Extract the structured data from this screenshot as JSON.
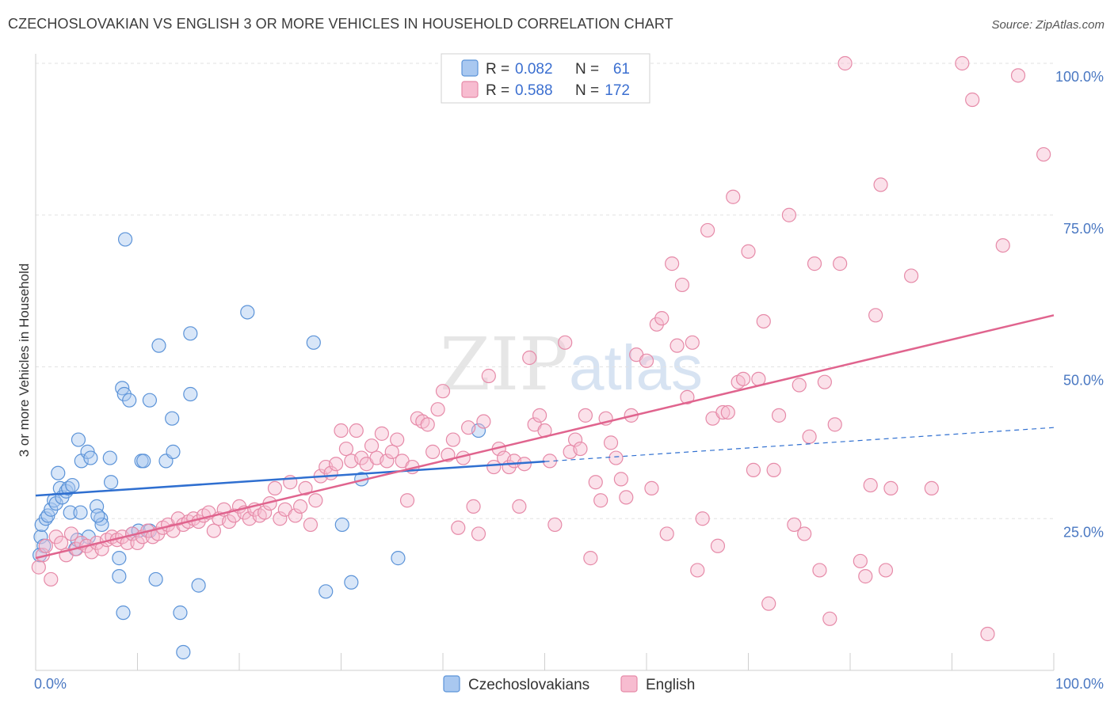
{
  "header": {
    "title": "CZECHOSLOVAKIAN VS ENGLISH 3 OR MORE VEHICLES IN HOUSEHOLD CORRELATION CHART",
    "source": "Source: ZipAtlas.com"
  },
  "watermark": {
    "zip": "ZIP",
    "atlas": "atlas"
  },
  "colors": {
    "blue_fill": "#a9c8f0",
    "blue_stroke": "#5b93d8",
    "blue_line": "#2f6fd0",
    "pink_fill": "#f7bcd0",
    "pink_stroke": "#e68aa8",
    "pink_line": "#e0648e",
    "grid": "#e2e2e2",
    "axis_label": "#4a78c2"
  },
  "legend": {
    "r_label": "R =",
    "n_label": "N =",
    "rows": [
      {
        "r": "0.082",
        "n": "61"
      },
      {
        "r": "0.588",
        "n": "172"
      }
    ]
  },
  "chart_data": {
    "type": "scatter",
    "ylabel": "3 or more Vehicles in Household",
    "xlim": [
      0,
      100
    ],
    "ylim": [
      0,
      100
    ],
    "x_tick_labels": [
      "0.0%",
      "100.0%"
    ],
    "y_tick_labels": [
      "25.0%",
      "50.0%",
      "75.0%",
      "100.0%"
    ],
    "y_ticks": [
      25,
      50,
      75,
      100
    ],
    "grid": "dashed horizontal",
    "legend_position": "top-center",
    "series": [
      {
        "name": "Czechoslovakians",
        "r": 0.082,
        "n": 61,
        "trend": {
          "x": [
            0,
            50
          ],
          "y": [
            28.8,
            34.4
          ],
          "dashed_extension": {
            "x": [
              50,
              100
            ],
            "y": [
              34.4,
              40.0
            ]
          }
        },
        "points": [
          [
            0.5,
            22.0
          ],
          [
            0.6,
            24.0
          ],
          [
            0.8,
            20.5
          ],
          [
            1.0,
            25.0
          ],
          [
            0.4,
            19.0
          ],
          [
            1.2,
            25.5
          ],
          [
            1.5,
            26.5
          ],
          [
            1.8,
            28.0
          ],
          [
            2.0,
            27.5
          ],
          [
            2.2,
            32.5
          ],
          [
            2.4,
            30.0
          ],
          [
            2.6,
            28.5
          ],
          [
            3.0,
            29.5
          ],
          [
            3.2,
            30.0
          ],
          [
            3.6,
            30.5
          ],
          [
            3.4,
            26.0
          ],
          [
            4.2,
            38.0
          ],
          [
            4.5,
            34.5
          ],
          [
            4.4,
            26.0
          ],
          [
            5.1,
            36.0
          ],
          [
            5.4,
            35.0
          ],
          [
            3.9,
            20.0
          ],
          [
            4.1,
            21.5
          ],
          [
            5.2,
            22.0
          ],
          [
            6.0,
            27.0
          ],
          [
            6.4,
            25.0
          ],
          [
            6.5,
            24.0
          ],
          [
            6.1,
            25.5
          ],
          [
            7.3,
            35.0
          ],
          [
            7.4,
            31.0
          ],
          [
            8.2,
            18.5
          ],
          [
            8.2,
            15.5
          ],
          [
            8.5,
            46.5
          ],
          [
            8.7,
            45.5
          ],
          [
            8.8,
            71.0
          ],
          [
            9.2,
            44.5
          ],
          [
            9.5,
            22.5
          ],
          [
            10.1,
            23.0
          ],
          [
            10.4,
            34.5
          ],
          [
            10.6,
            34.5
          ],
          [
            11.2,
            23.0
          ],
          [
            11.2,
            44.5
          ],
          [
            11.8,
            15.0
          ],
          [
            12.1,
            53.5
          ],
          [
            12.8,
            34.5
          ],
          [
            13.4,
            41.5
          ],
          [
            13.5,
            36.0
          ],
          [
            14.2,
            9.5
          ],
          [
            14.5,
            3.0
          ],
          [
            15.2,
            55.5
          ],
          [
            15.2,
            45.5
          ],
          [
            16.0,
            14.0
          ],
          [
            8.6,
            9.5
          ],
          [
            20.8,
            59.0
          ],
          [
            27.3,
            54.0
          ],
          [
            28.5,
            13.0
          ],
          [
            30.1,
            24.0
          ],
          [
            31.0,
            14.5
          ],
          [
            32.0,
            31.5
          ],
          [
            35.6,
            18.5
          ],
          [
            43.5,
            39.5
          ]
        ]
      },
      {
        "name": "English",
        "r": 0.588,
        "n": 172,
        "trend": {
          "x": [
            0,
            100
          ],
          "y": [
            18.5,
            58.5
          ]
        },
        "points": [
          [
            0.3,
            17.0
          ],
          [
            0.7,
            19.0
          ],
          [
            1.0,
            20.5
          ],
          [
            1.5,
            15.0
          ],
          [
            2.0,
            22.0
          ],
          [
            2.5,
            21.0
          ],
          [
            3.0,
            19.0
          ],
          [
            3.5,
            22.5
          ],
          [
            4.0,
            20.0
          ],
          [
            4.5,
            21.0
          ],
          [
            5.0,
            20.5
          ],
          [
            5.5,
            19.5
          ],
          [
            6.0,
            21.0
          ],
          [
            6.5,
            20.0
          ],
          [
            7.0,
            21.5
          ],
          [
            7.5,
            22.0
          ],
          [
            8.0,
            21.5
          ],
          [
            8.5,
            22.0
          ],
          [
            9.0,
            21.0
          ],
          [
            9.5,
            22.5
          ],
          [
            10.0,
            21.0
          ],
          [
            10.5,
            22.0
          ],
          [
            11.0,
            23.0
          ],
          [
            11.5,
            22.0
          ],
          [
            12.0,
            22.5
          ],
          [
            12.5,
            23.5
          ],
          [
            13.0,
            24.0
          ],
          [
            13.5,
            23.0
          ],
          [
            14.0,
            25.0
          ],
          [
            14.5,
            24.0
          ],
          [
            15.0,
            24.5
          ],
          [
            15.5,
            25.0
          ],
          [
            16.0,
            24.5
          ],
          [
            16.5,
            25.5
          ],
          [
            17.0,
            26.0
          ],
          [
            17.5,
            23.0
          ],
          [
            18.0,
            25.0
          ],
          [
            18.5,
            26.5
          ],
          [
            19.0,
            24.5
          ],
          [
            19.5,
            25.5
          ],
          [
            20.0,
            27.0
          ],
          [
            20.5,
            26.0
          ],
          [
            21.0,
            25.0
          ],
          [
            21.5,
            26.5
          ],
          [
            22.0,
            25.5
          ],
          [
            22.5,
            26.0
          ],
          [
            23.0,
            27.5
          ],
          [
            23.5,
            30.0
          ],
          [
            24.0,
            25.0
          ],
          [
            24.5,
            26.5
          ],
          [
            25.0,
            31.0
          ],
          [
            25.5,
            25.5
          ],
          [
            26.0,
            27.0
          ],
          [
            26.5,
            30.0
          ],
          [
            27.0,
            24.0
          ],
          [
            27.5,
            28.0
          ],
          [
            28.0,
            32.0
          ],
          [
            28.5,
            33.5
          ],
          [
            29.0,
            32.5
          ],
          [
            29.5,
            34.0
          ],
          [
            30.0,
            39.5
          ],
          [
            30.5,
            36.5
          ],
          [
            31.0,
            34.5
          ],
          [
            31.5,
            39.5
          ],
          [
            32.0,
            35.0
          ],
          [
            32.5,
            34.0
          ],
          [
            33.0,
            37.0
          ],
          [
            33.5,
            35.0
          ],
          [
            34.0,
            39.0
          ],
          [
            34.5,
            34.5
          ],
          [
            35.0,
            36.0
          ],
          [
            35.5,
            38.0
          ],
          [
            36.0,
            34.5
          ],
          [
            36.5,
            28.0
          ],
          [
            37.0,
            33.5
          ],
          [
            37.5,
            41.5
          ],
          [
            38.0,
            41.0
          ],
          [
            38.5,
            40.5
          ],
          [
            39.0,
            36.0
          ],
          [
            39.5,
            43.0
          ],
          [
            40.0,
            46.0
          ],
          [
            40.5,
            35.5
          ],
          [
            41.0,
            38.0
          ],
          [
            41.5,
            23.5
          ],
          [
            42.0,
            35.0
          ],
          [
            42.5,
            40.0
          ],
          [
            43.0,
            27.0
          ],
          [
            43.5,
            22.5
          ],
          [
            44.0,
            41.0
          ],
          [
            44.5,
            48.5
          ],
          [
            45.0,
            33.5
          ],
          [
            45.5,
            36.5
          ],
          [
            46.0,
            35.0
          ],
          [
            46.5,
            33.5
          ],
          [
            47.0,
            34.5
          ],
          [
            47.5,
            27.0
          ],
          [
            48.0,
            34.0
          ],
          [
            48.5,
            51.5
          ],
          [
            49.0,
            40.5
          ],
          [
            49.5,
            42.0
          ],
          [
            50.0,
            39.5
          ],
          [
            50.5,
            34.5
          ],
          [
            51.0,
            24.0
          ],
          [
            52.0,
            54.0
          ],
          [
            52.5,
            36.0
          ],
          [
            53.0,
            38.0
          ],
          [
            53.5,
            36.5
          ],
          [
            54.0,
            42.0
          ],
          [
            54.5,
            18.5
          ],
          [
            55.0,
            31.0
          ],
          [
            55.5,
            28.0
          ],
          [
            56.0,
            41.5
          ],
          [
            56.5,
            37.5
          ],
          [
            57.0,
            35.0
          ],
          [
            57.5,
            31.5
          ],
          [
            58.0,
            28.5
          ],
          [
            58.5,
            42.0
          ],
          [
            59.0,
            52.0
          ],
          [
            60.0,
            51.0
          ],
          [
            60.5,
            30.0
          ],
          [
            61.0,
            57.0
          ],
          [
            61.5,
            58.0
          ],
          [
            62.0,
            22.5
          ],
          [
            62.5,
            67.0
          ],
          [
            63.0,
            53.5
          ],
          [
            63.5,
            63.5
          ],
          [
            64.0,
            45.0
          ],
          [
            64.5,
            54.0
          ],
          [
            65.0,
            16.5
          ],
          [
            65.5,
            25.0
          ],
          [
            66.0,
            72.5
          ],
          [
            66.5,
            41.5
          ],
          [
            67.0,
            20.5
          ],
          [
            67.5,
            42.5
          ],
          [
            68.0,
            42.5
          ],
          [
            68.5,
            78.0
          ],
          [
            69.0,
            47.5
          ],
          [
            69.5,
            48.0
          ],
          [
            70.0,
            69.0
          ],
          [
            70.5,
            33.0
          ],
          [
            71.0,
            48.0
          ],
          [
            71.5,
            57.5
          ],
          [
            72.0,
            11.0
          ],
          [
            72.5,
            33.0
          ],
          [
            73.0,
            42.0
          ],
          [
            74.0,
            75.0
          ],
          [
            74.5,
            24.0
          ],
          [
            75.0,
            47.0
          ],
          [
            75.5,
            22.5
          ],
          [
            76.0,
            38.5
          ],
          [
            76.5,
            67.0
          ],
          [
            77.0,
            16.5
          ],
          [
            77.5,
            47.5
          ],
          [
            78.0,
            8.5
          ],
          [
            78.5,
            40.5
          ],
          [
            79.0,
            67.0
          ],
          [
            81.0,
            18.0
          ],
          [
            81.5,
            15.5
          ],
          [
            82.0,
            30.5
          ],
          [
            82.5,
            58.5
          ],
          [
            83.0,
            80.0
          ],
          [
            83.5,
            16.5
          ],
          [
            84.0,
            30.0
          ],
          [
            86.0,
            65.0
          ],
          [
            88.0,
            30.0
          ],
          [
            91.0,
            100.0
          ],
          [
            92.0,
            94.0
          ],
          [
            93.5,
            6.0
          ],
          [
            95.0,
            70.0
          ],
          [
            96.5,
            98.0
          ],
          [
            99.0,
            85.0
          ],
          [
            79.5,
            100.0
          ]
        ]
      }
    ]
  },
  "bottom_legend": {
    "items": [
      {
        "label": "Czechoslovakians"
      },
      {
        "label": "English"
      }
    ]
  }
}
